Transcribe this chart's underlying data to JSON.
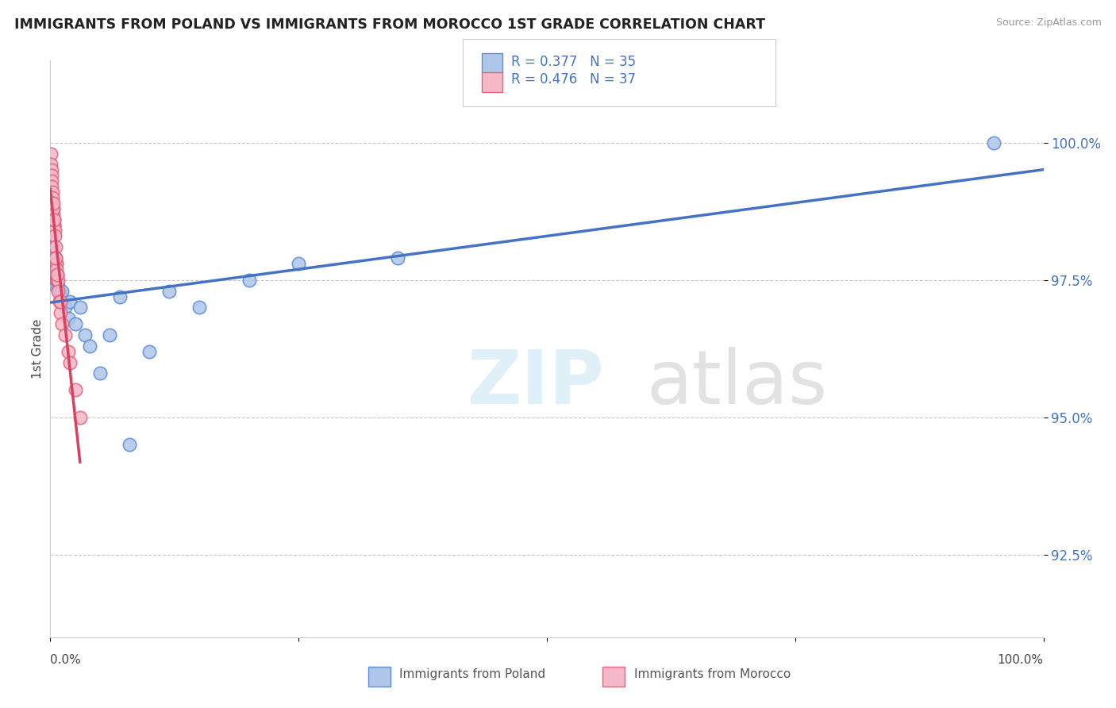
{
  "title": "IMMIGRANTS FROM POLAND VS IMMIGRANTS FROM MOROCCO 1ST GRADE CORRELATION CHART",
  "source": "Source: ZipAtlas.com",
  "ylabel": "1st Grade",
  "y_ticks": [
    92.5,
    95.0,
    97.5,
    100.0
  ],
  "y_tick_labels": [
    "92.5%",
    "95.0%",
    "97.5%",
    "100.0%"
  ],
  "xlim": [
    0.0,
    100.0
  ],
  "ylim": [
    91.0,
    101.5
  ],
  "poland_R": 0.377,
  "poland_N": 35,
  "morocco_R": 0.476,
  "morocco_N": 37,
  "poland_color": "#aec6e8",
  "morocco_color": "#f5b8c8",
  "poland_edge_color": "#5b8dd9",
  "morocco_edge_color": "#e8607a",
  "poland_line_color": "#4472c4",
  "morocco_line_color": "#d94060",
  "tick_color": "#4472c4",
  "background_color": "#ffffff",
  "grid_color": "#c8c8c8",
  "poland_x": [
    0.15,
    0.2,
    0.25,
    0.3,
    0.35,
    0.4,
    0.45,
    0.5,
    0.55,
    0.6,
    0.65,
    0.7,
    0.8,
    0.9,
    1.0,
    1.1,
    1.2,
    1.5,
    1.8,
    2.0,
    2.5,
    3.0,
    3.5,
    4.0,
    5.0,
    6.0,
    7.0,
    8.0,
    10.0,
    12.0,
    15.0,
    20.0,
    25.0,
    35.0,
    95.0
  ],
  "poland_y": [
    98.3,
    98.0,
    97.9,
    98.1,
    97.8,
    97.7,
    97.6,
    97.5,
    97.4,
    97.8,
    97.5,
    97.6,
    97.4,
    97.3,
    97.2,
    97.1,
    97.3,
    97.0,
    96.8,
    97.1,
    96.7,
    97.0,
    96.5,
    96.3,
    95.8,
    96.5,
    97.2,
    94.5,
    96.2,
    97.3,
    97.0,
    97.5,
    97.8,
    97.9,
    100.0
  ],
  "morocco_x": [
    0.05,
    0.08,
    0.1,
    0.12,
    0.15,
    0.17,
    0.2,
    0.22,
    0.25,
    0.28,
    0.3,
    0.32,
    0.35,
    0.38,
    0.4,
    0.42,
    0.45,
    0.5,
    0.55,
    0.6,
    0.65,
    0.7,
    0.75,
    0.8,
    0.9,
    1.0,
    1.2,
    1.5,
    1.8,
    2.0,
    2.5,
    3.0,
    0.3,
    0.4,
    0.55,
    0.7,
    1.0
  ],
  "morocco_y": [
    99.8,
    99.6,
    99.5,
    99.4,
    99.3,
    99.2,
    99.1,
    99.0,
    98.9,
    98.8,
    98.7,
    98.8,
    98.6,
    98.5,
    98.5,
    98.4,
    98.3,
    98.1,
    97.9,
    97.8,
    97.7,
    97.5,
    97.5,
    97.3,
    97.1,
    96.9,
    96.7,
    96.5,
    96.2,
    96.0,
    95.5,
    95.0,
    98.9,
    98.6,
    97.9,
    97.6,
    97.1
  ]
}
